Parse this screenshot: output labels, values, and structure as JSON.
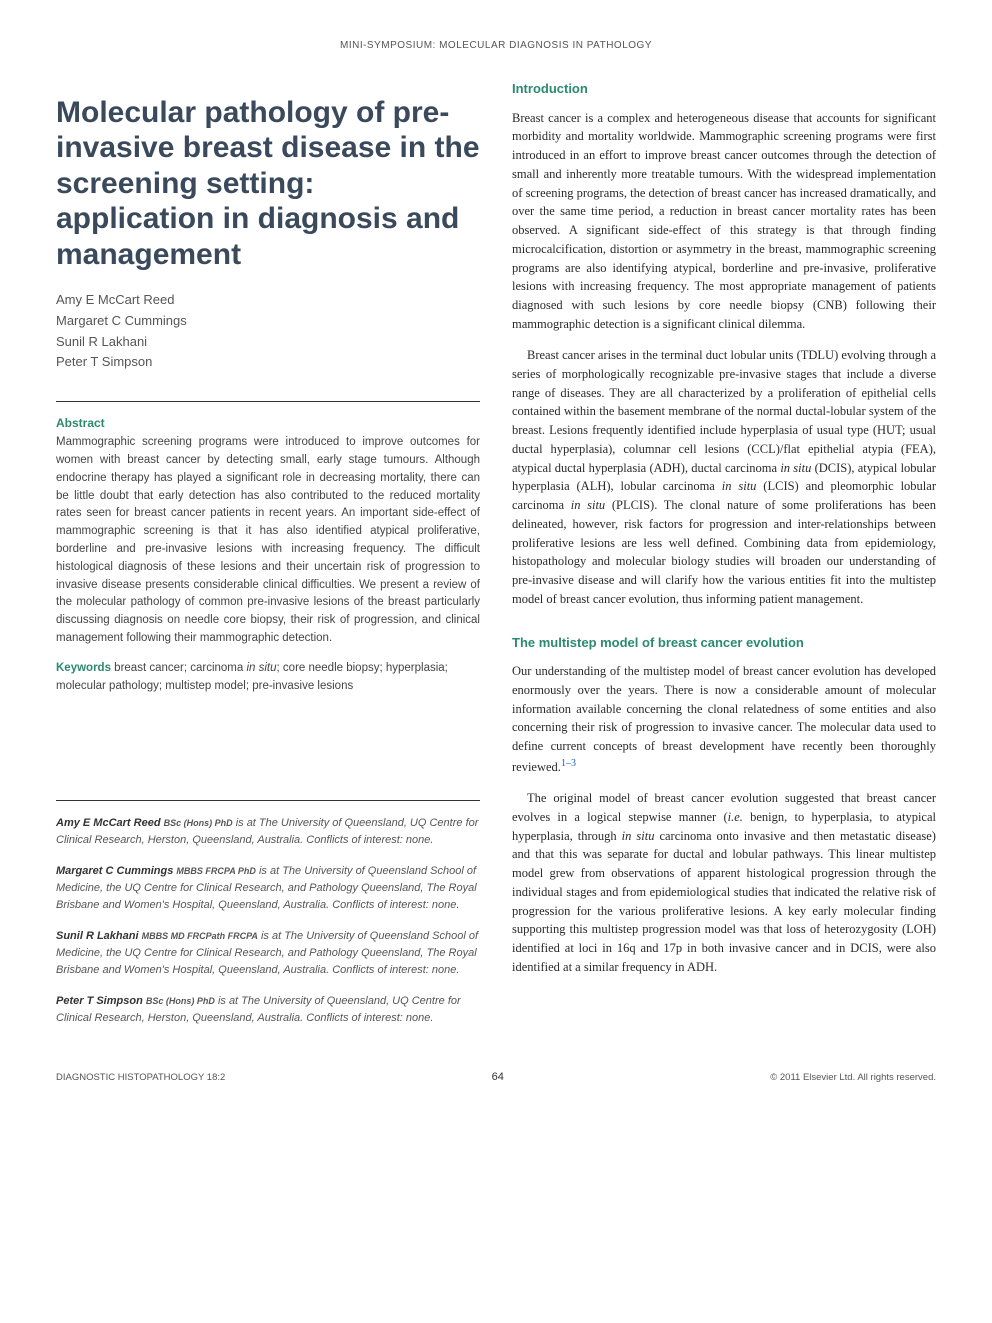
{
  "running_head": "MINI-SYMPOSIUM: MOLECULAR DIAGNOSIS IN PATHOLOGY",
  "title": "Molecular pathology of pre-invasive breast disease in the screening setting: application in diagnosis and management",
  "authors": [
    "Amy E McCart Reed",
    "Margaret C Cummings",
    "Sunil R Lakhani",
    "Peter T Simpson"
  ],
  "abstract": {
    "heading": "Abstract",
    "body": "Mammographic screening programs were introduced to improve outcomes for women with breast cancer by detecting small, early stage tumours. Although endocrine therapy has played a significant role in decreasing mortality, there can be little doubt that early detection has also contributed to the reduced mortality rates seen for breast cancer patients in recent years. An important side-effect of mammographic screening is that it has also identified atypical proliferative, borderline and pre-invasive lesions with increasing frequency. The difficult histological diagnosis of these lesions and their uncertain risk of progression to invasive disease presents considerable clinical difficulties. We present a review of the molecular pathology of common pre-invasive lesions of the breast particularly discussing diagnosis on needle core biopsy, their risk of progression, and clinical management following their mammographic detection."
  },
  "keywords": {
    "label": "Keywords",
    "text_html": "breast cancer; carcinoma <em>in situ</em>; core needle biopsy; hyperplasia; molecular pathology; multistep model; pre-invasive lesions"
  },
  "affiliations": [
    {
      "name": "Amy E McCart Reed",
      "creds": "BSc (Hons) PhD",
      "text": "is at The University of Queensland, UQ Centre for Clinical Research, Herston, Queensland, Australia. Conflicts of interest: none."
    },
    {
      "name": "Margaret C Cummings",
      "creds": "MBBS FRCPA PhD",
      "text": "is at The University of Queensland School of Medicine, the UQ Centre for Clinical Research, and Pathology Queensland, The Royal Brisbane and Women's Hospital, Queensland, Australia. Conflicts of interest: none."
    },
    {
      "name": "Sunil R Lakhani",
      "creds": "MBBS MD FRCPath FRCPA",
      "text": "is at The University of Queensland School of Medicine, the UQ Centre for Clinical Research, and Pathology Queensland, The Royal Brisbane and Women's Hospital, Queensland, Australia. Conflicts of interest: none."
    },
    {
      "name": "Peter T Simpson",
      "creds": "BSc (Hons) PhD",
      "text": "is at The University of Queensland, UQ Centre for Clinical Research, Herston, Queensland, Australia. Conflicts of interest: none."
    }
  ],
  "sections": {
    "intro": {
      "heading": "Introduction",
      "paras": [
        "Breast cancer is a complex and heterogeneous disease that accounts for significant morbidity and mortality worldwide. Mammographic screening programs were first introduced in an effort to improve breast cancer outcomes through the detection of small and inherently more treatable tumours. With the widespread implementation of screening programs, the detection of breast cancer has increased dramatically, and over the same time period, a reduction in breast cancer mortality rates has been observed. A significant side-effect of this strategy is that through finding microcalcification, distortion or asymmetry in the breast, mammographic screening programs are also identifying atypical, borderline and pre-invasive, proliferative lesions with increasing frequency. The most appropriate management of patients diagnosed with such lesions by core needle biopsy (CNB) following their mammographic detection is a significant clinical dilemma.",
        "Breast cancer arises in the terminal duct lobular units (TDLU) evolving through a series of morphologically recognizable pre-invasive stages that include a diverse range of diseases. They are all characterized by a proliferation of epithelial cells contained within the basement membrane of the normal ductal-lobular system of the breast. Lesions frequently identified include hyperplasia of usual type (HUT; usual ductal hyperplasia), columnar cell lesions (CCL)/flat epithelial atypia (FEA), atypical ductal hyperplasia (ADH), ductal carcinoma <em>in situ</em> (DCIS), atypical lobular hyperplasia (ALH), lobular carcinoma <em>in situ</em> (LCIS) and pleomorphic lobular carcinoma <em>in situ</em> (PLCIS). The clonal nature of some proliferations has been delineated, however, risk factors for progression and inter-relationships between proliferative lesions are less well defined. Combining data from epidemiology, histopathology and molecular biology studies will broaden our understanding of pre-invasive disease and will clarify how the various entities fit into the multistep model of breast cancer evolution, thus informing patient management."
      ]
    },
    "multistep": {
      "heading": "The multistep model of breast cancer evolution",
      "paras": [
        "Our understanding of the multistep model of breast cancer evolution has developed enormously over the years. There is now a considerable amount of molecular information available concerning the clonal relatedness of some entities and also concerning their risk of progression to invasive cancer. The molecular data used to define current concepts of breast development have recently been thoroughly reviewed.",
        "The original model of breast cancer evolution suggested that breast cancer evolves in a logical stepwise manner (<em>i.e.</em> benign, to hyperplasia, to atypical hyperplasia, through <em>in situ</em> carcinoma onto invasive and then metastatic disease) and that this was separate for ductal and lobular pathways. This linear multistep model grew from observations of apparent histological progression through the individual stages and from epidemiological studies that indicated the relative risk of progression for the various proliferative lesions. A key early molecular finding supporting this multistep progression model was that loss of heterozygosity (LOH) identified at loci in 16q and 17p in both invasive cancer and in DCIS, were also identified at a similar frequency in ADH."
      ],
      "citation_marker": "1–3"
    }
  },
  "footer": {
    "journal": "DIAGNOSTIC HISTOPATHOLOGY 18:2",
    "page": "64",
    "copyright": "© 2011 Elsevier Ltd. All rights reserved."
  },
  "colors": {
    "heading_teal": "#2b8a6f",
    "title_slate": "#3a4a5c",
    "link_blue": "#1a5fb4",
    "body_text": "#2a2a2a",
    "muted_text": "#555555"
  },
  "typography": {
    "title_fontsize": 30,
    "section_head_fontsize": 13,
    "body_fontsize": 12.5,
    "abstract_fontsize": 11.5,
    "affil_fontsize": 11,
    "footer_fontsize": 9.5
  }
}
